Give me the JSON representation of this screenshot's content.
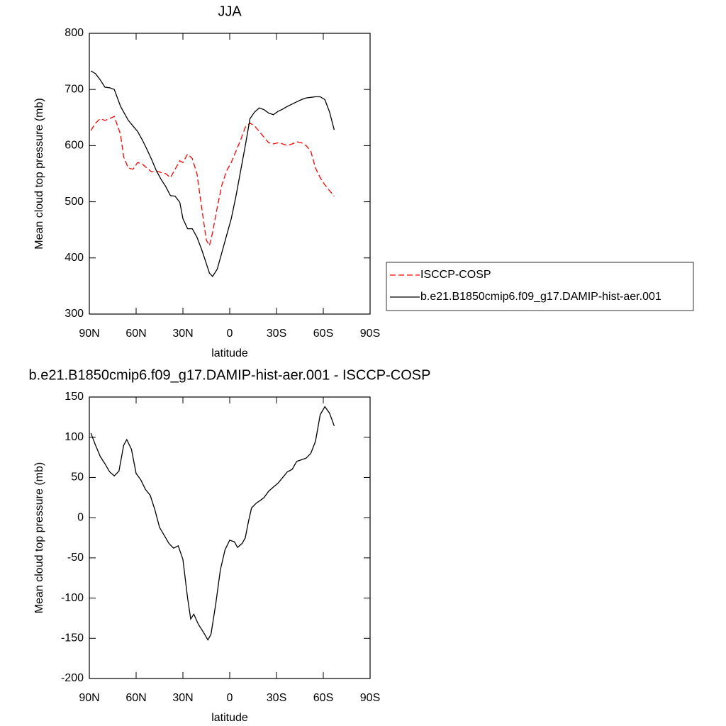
{
  "chart_data": [
    {
      "type": "line",
      "title": "JJA",
      "xlabel": "latitude",
      "ylabel": "Mean cloud top pressure (mb)",
      "x": [
        89,
        86,
        83,
        80,
        77,
        74,
        70,
        68,
        65,
        62,
        59,
        56,
        53,
        50,
        47,
        44,
        41,
        38,
        35,
        32,
        30,
        27,
        24,
        21,
        18,
        15,
        13,
        11,
        8,
        5,
        2,
        -1,
        -4,
        -7,
        -10,
        -13,
        -16,
        -19,
        -22,
        -25,
        -28,
        -31,
        -34,
        -37,
        -40,
        -43,
        -46,
        -49,
        -52,
        -55,
        -58,
        -61,
        -64,
        -67
      ],
      "series": [
        {
          "name": "ISCCP-COSP",
          "color": "#ff0000",
          "dash": true,
          "values": [
            627,
            640,
            648,
            645,
            648,
            652,
            620,
            580,
            560,
            558,
            570,
            567,
            560,
            553,
            555,
            552,
            550,
            543,
            558,
            573,
            570,
            585,
            577,
            550,
            490,
            432,
            422,
            445,
            490,
            530,
            555,
            570,
            590,
            610,
            633,
            640,
            635,
            625,
            615,
            605,
            603,
            605,
            603,
            600,
            603,
            607,
            605,
            600,
            590,
            560,
            543,
            530,
            520,
            510
          ]
        },
        {
          "name": "b.e21.B1850cmip6.f09_g17.DAMIP-hist-aer.001",
          "color": "#000000",
          "dash": false,
          "values": [
            733,
            728,
            717,
            704,
            703,
            700,
            670,
            660,
            645,
            635,
            625,
            610,
            593,
            575,
            555,
            540,
            527,
            511,
            510,
            499,
            470,
            452,
            452,
            437,
            415,
            390,
            373,
            367,
            380,
            410,
            440,
            470,
            510,
            555,
            600,
            648,
            660,
            667,
            664,
            658,
            655,
            661,
            665,
            670,
            674,
            678,
            682,
            685,
            686,
            687,
            687,
            682,
            660,
            628
          ]
        }
      ],
      "xlim": [
        90,
        -90
      ],
      "xticks": [
        {
          "value": 90,
          "label": "90N"
        },
        {
          "value": 60,
          "label": "60N"
        },
        {
          "value": 30,
          "label": "30N"
        },
        0,
        {
          "value": -30,
          "label": "30S"
        },
        {
          "value": -60,
          "label": "60S"
        },
        {
          "value": -90,
          "label": "90S"
        }
      ],
      "ylim": [
        300,
        800
      ],
      "yticks": [
        300,
        400,
        500,
        600,
        700,
        800
      ],
      "legend": "right"
    },
    {
      "type": "line",
      "title": "b.e21.B1850cmip6.f09_g17.DAMIP-hist-aer.001 - ISCCP-COSP",
      "xlabel": "latitude",
      "ylabel": "Mean cloud top pressure (mb)",
      "x": [
        89,
        86,
        83,
        80,
        77,
        74,
        71,
        68,
        66,
        63,
        60,
        57,
        54,
        51,
        48,
        45,
        42,
        39,
        36,
        33,
        30,
        27,
        25,
        23,
        20,
        17,
        14,
        12,
        9,
        6,
        3,
        0,
        -3,
        -5,
        -8,
        -10,
        -12,
        -14,
        -17,
        -20,
        -22,
        -25,
        -28,
        -31,
        -34,
        -37,
        -40,
        -43,
        -46,
        -49,
        -52,
        -55,
        -58,
        -61,
        -64,
        -67
      ],
      "series": [
        {
          "color": "#000000",
          "dash": false,
          "values": [
            105,
            90,
            76,
            67,
            57,
            52,
            58,
            90,
            97,
            85,
            55,
            47,
            35,
            28,
            10,
            -12,
            -22,
            -32,
            -38,
            -35,
            -52,
            -100,
            -126,
            -120,
            -133,
            -142,
            -152,
            -145,
            -108,
            -65,
            -40,
            -28,
            -30,
            -37,
            -32,
            -25,
            -5,
            12,
            18,
            22,
            25,
            33,
            38,
            43,
            50,
            57,
            60,
            70,
            72,
            74,
            80,
            95,
            128,
            138,
            130,
            114
          ]
        }
      ],
      "xlim": [
        90,
        -90
      ],
      "xticks": [
        {
          "value": 90,
          "label": "90N"
        },
        {
          "value": 60,
          "label": "60N"
        },
        {
          "value": 30,
          "label": "30N"
        },
        0,
        {
          "value": -30,
          "label": "30S"
        },
        {
          "value": -60,
          "label": "60S"
        },
        {
          "value": -90,
          "label": "90S"
        }
      ],
      "ylim": [
        -200,
        150
      ],
      "yticks": [
        -200,
        -150,
        -100,
        -50,
        0,
        50,
        100,
        150
      ]
    }
  ]
}
